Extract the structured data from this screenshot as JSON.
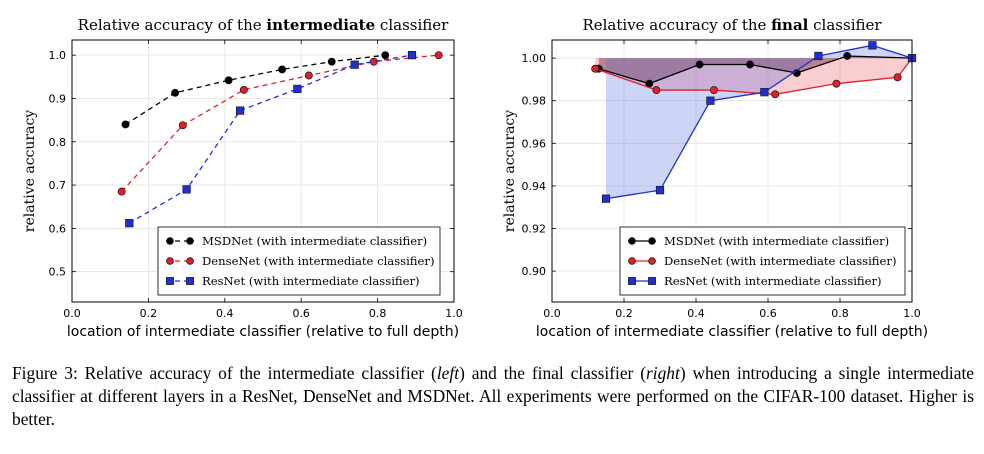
{
  "chart_data": [
    {
      "type": "line",
      "title_prefix": "Relative accuracy of the ",
      "title_bold": "intermediate",
      "title_suffix": " classifier",
      "xlabel": "location of intermediate classifier (relative to full depth)",
      "ylabel": "relative accuracy",
      "xlim": [
        0.0,
        1.0
      ],
      "ylim": [
        0.43,
        1.035
      ],
      "xticks": [
        0.0,
        0.2,
        0.4,
        0.6,
        0.8,
        1.0
      ],
      "yticks": [
        0.5,
        0.6,
        0.7,
        0.8,
        0.9,
        1.0
      ],
      "grid": true,
      "legend_position": "bottom-right",
      "series": [
        {
          "name": "MSDNet (with intermediate classifier)",
          "color": "#000000",
          "marker": "circle",
          "x": [
            0.14,
            0.27,
            0.41,
            0.55,
            0.68,
            0.82
          ],
          "y": [
            0.84,
            0.913,
            0.942,
            0.967,
            0.985,
            1.0
          ]
        },
        {
          "name": "DenseNet (with intermediate classifier)",
          "color": "#e0202a",
          "marker": "circle",
          "x": [
            0.13,
            0.29,
            0.45,
            0.62,
            0.79,
            0.96
          ],
          "y": [
            0.685,
            0.838,
            0.92,
            0.953,
            0.985,
            1.0
          ]
        },
        {
          "name": "ResNet (with intermediate classifier)",
          "color": "#1f2fd6",
          "marker": "square",
          "x": [
            0.15,
            0.3,
            0.44,
            0.59,
            0.74,
            0.89
          ],
          "y": [
            0.612,
            0.69,
            0.872,
            0.922,
            0.978,
            1.0
          ]
        }
      ]
    },
    {
      "type": "line",
      "title_prefix": "Relative accuracy of the ",
      "title_bold": "final",
      "title_suffix": " classifier",
      "xlabel": "location of intermediate classifier (relative to full depth)",
      "ylabel": "relative accuracy",
      "xlim": [
        0.0,
        1.0
      ],
      "ylim": [
        0.8855,
        1.0085
      ],
      "xticks": [
        0.0,
        0.2,
        0.4,
        0.6,
        0.8,
        1.0
      ],
      "yticks": [
        0.9,
        0.92,
        0.94,
        0.96,
        0.98,
        1.0
      ],
      "grid": true,
      "legend_position": "bottom-right",
      "fill_baseline": 1.0,
      "series": [
        {
          "name": "MSDNet (with intermediate classifier)",
          "color": "#000000",
          "fill": "rgba(60,20,40,0.42)",
          "marker": "circle",
          "x": [
            0.13,
            0.27,
            0.41,
            0.55,
            0.68,
            0.82,
            1.0
          ],
          "y": [
            0.995,
            0.988,
            0.997,
            0.997,
            0.993,
            1.001,
            1.0
          ]
        },
        {
          "name": "DenseNet (with intermediate classifier)",
          "color": "#e0202a",
          "fill": "rgba(230,60,70,0.25)",
          "marker": "circle",
          "x": [
            0.12,
            0.29,
            0.45,
            0.62,
            0.79,
            0.96,
            1.0
          ],
          "y": [
            0.995,
            0.985,
            0.985,
            0.983,
            0.988,
            0.991,
            1.0
          ]
        },
        {
          "name": "ResNet (with intermediate classifier)",
          "color": "#1f2fd6",
          "fill": "rgba(80,100,220,0.28)",
          "marker": "square",
          "x": [
            0.15,
            0.3,
            0.44,
            0.59,
            0.74,
            0.89,
            1.0
          ],
          "y": [
            0.934,
            0.938,
            0.98,
            0.984,
            1.001,
            1.006,
            1.0
          ]
        }
      ]
    }
  ],
  "caption": {
    "part1": "Figure 3: Relative accuracy of the intermediate classifier (",
    "left_word": "left",
    "part2": ") and the final classifier (",
    "right_word": "right",
    "part3": ") when introducing a single intermediate classifier at different layers in a ResNet, DenseNet and MSDNet. All experiments were performed on the CIFAR-100 dataset. Higher is better."
  }
}
